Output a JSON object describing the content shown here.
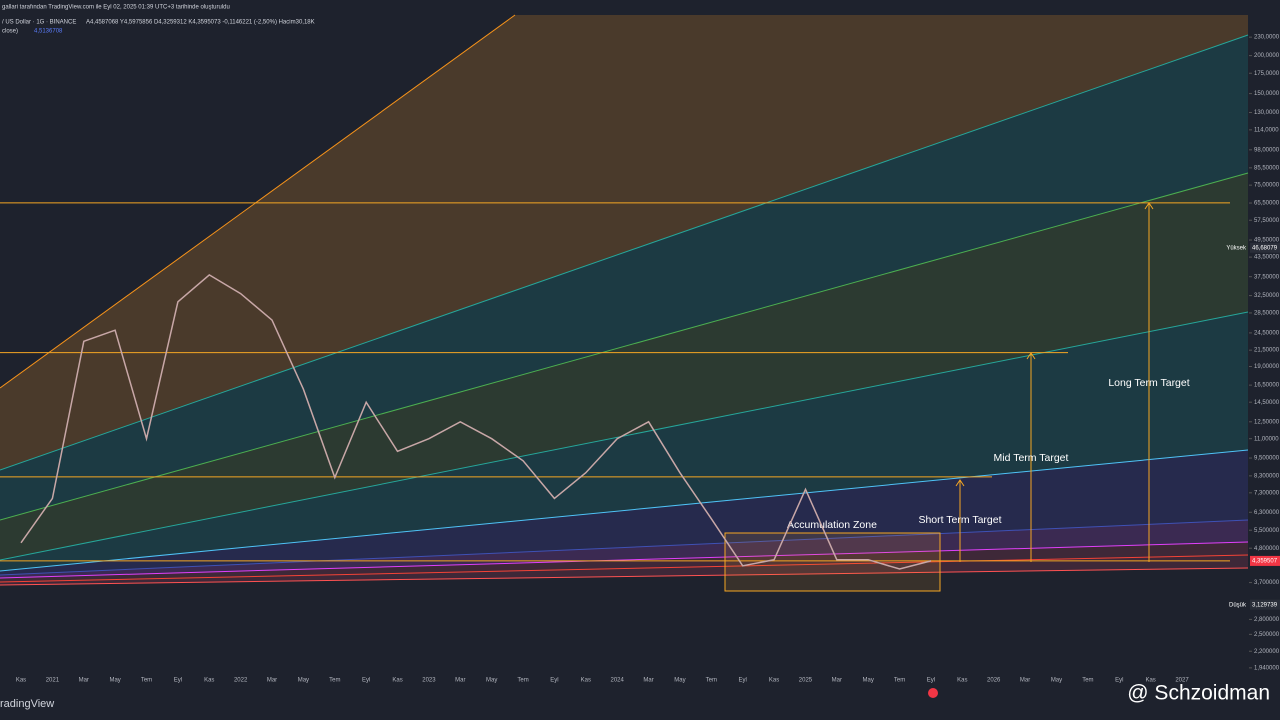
{
  "header": {
    "caption": "gallari tarafından TradingView.com ile Eyl 02, 2025 01:39 UTC+3 tarihinde oluşturuldu",
    "symbol": "/ US Dollar · 1G · BINANCE",
    "ohlc": "A4,4587068 Y4,5975856 D4,3259312 K4,3595073 -0,1146221 (-2,50%) Hacim30,18K",
    "indicator": "close)",
    "indicator_value": "4,5136708"
  },
  "footer": {
    "brand": "radingView",
    "watermark": "@ Schzoidman"
  },
  "chart_data": {
    "type": "line",
    "log_scale": true,
    "categories": [
      "Kas",
      "2021",
      "Mar",
      "May",
      "Tem",
      "Eyl",
      "Kas",
      "2022",
      "Mar",
      "May",
      "Tem",
      "Eyl",
      "Kas",
      "2023",
      "Mar",
      "May",
      "Tem",
      "Eyl",
      "Kas",
      "2024",
      "Mar",
      "May",
      "Tem",
      "Eyl",
      "Kas",
      "2025",
      "Mar",
      "May",
      "Tem",
      "Eyl",
      "Kas",
      "2026",
      "Mar",
      "May",
      "Tem",
      "Eyl",
      "Kas",
      "2027"
    ],
    "series": [
      {
        "name": "close",
        "color": "#c8a7a7",
        "values": [
          5.0,
          7,
          23,
          25,
          11,
          31,
          38,
          33,
          27,
          16,
          8.2,
          14.5,
          10,
          11,
          12.5,
          11,
          9.3,
          7,
          8.5,
          11,
          12.5,
          8.5,
          6,
          4.2,
          4.4,
          7.5,
          4.4,
          4.4,
          4.1,
          4.36,
          null,
          null,
          null,
          null,
          null,
          null,
          null,
          null
        ]
      }
    ],
    "ylim": [
      1.88,
      272
    ],
    "yticks": [
      {
        "value": 230,
        "label": "230,0000"
      },
      {
        "value": 200,
        "label": "200,0000"
      },
      {
        "value": 175,
        "label": "175,0000"
      },
      {
        "value": 150,
        "label": "150,0000"
      },
      {
        "value": 130,
        "label": "130,0000"
      },
      {
        "value": 114,
        "label": "114,0000"
      },
      {
        "value": 98,
        "label": "98,00000"
      },
      {
        "value": 85.5,
        "label": "85,50000"
      },
      {
        "value": 75,
        "label": "75,00000"
      },
      {
        "value": 65.5,
        "label": "65,50000"
      },
      {
        "value": 57.5,
        "label": "57,50000"
      },
      {
        "value": 49.5,
        "label": "49,50000"
      },
      {
        "value": 43.5,
        "label": "43,50000"
      },
      {
        "value": 37.5,
        "label": "37,50000"
      },
      {
        "value": 32.5,
        "label": "32,50000"
      },
      {
        "value": 28.5,
        "label": "28,50000"
      },
      {
        "value": 24.5,
        "label": "24,50000"
      },
      {
        "value": 21.5,
        "label": "21,50000"
      },
      {
        "value": 19,
        "label": "19,00000"
      },
      {
        "value": 16.5,
        "label": "16,50000"
      },
      {
        "value": 14.5,
        "label": "14,50000"
      },
      {
        "value": 12.5,
        "label": "12,50000"
      },
      {
        "value": 11,
        "label": "11,00000"
      },
      {
        "value": 9.5,
        "label": "9,500000"
      },
      {
        "value": 8.3,
        "label": "8,300000"
      },
      {
        "value": 7.3,
        "label": "7,300000"
      },
      {
        "value": 6.3,
        "label": "6,300000"
      },
      {
        "value": 5.5,
        "label": "5,500000"
      },
      {
        "value": 4.8,
        "label": "4,800000"
      },
      {
        "value": 3.7,
        "label": "3,700000"
      },
      {
        "value": 2.8,
        "label": "2,800000"
      },
      {
        "value": 2.5,
        "label": "2,500000"
      },
      {
        "value": 2.2,
        "label": "2,200000"
      },
      {
        "value": 1.94,
        "label": "1,940000"
      }
    ],
    "levels": [
      {
        "value": 65.6,
        "color": "#f5a623"
      },
      {
        "value": 21.1,
        "color": "#f5a623"
      },
      {
        "value": 8.24,
        "color": "#f5a623"
      },
      {
        "value": 4.36,
        "color": "#f5a623"
      }
    ],
    "price_labels": [
      {
        "name": "Yüksek",
        "value": 46.68079,
        "label": "46,68079",
        "color": "#2a2e39"
      },
      {
        "name": "Düşük",
        "value": 3.129739,
        "label": "3,129739",
        "color": "#2a2e39"
      },
      {
        "name": "",
        "value": 4.359507,
        "label": "4,359507",
        "color": "#f23645"
      }
    ],
    "annotations": [
      "Accumulation Zone",
      "Short Term Target",
      "Mid Term Target",
      "Long Term Target"
    ]
  }
}
